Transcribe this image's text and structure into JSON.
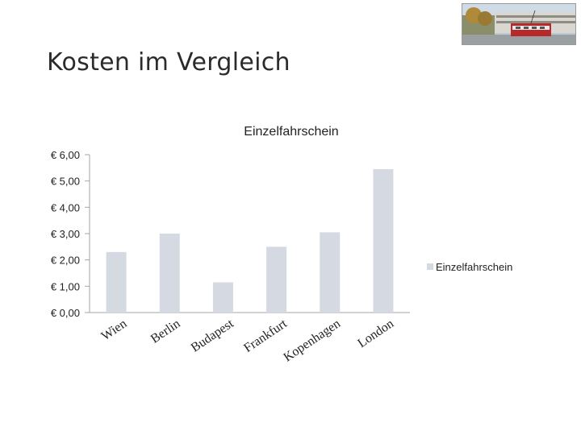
{
  "slide": {
    "title": "Kosten im Vergleich"
  },
  "colors": {
    "bar": "#d5d9e2",
    "axis": "#a6a6a6",
    "text": "#222222"
  },
  "photo": {
    "icon": "tram-photo-icon"
  },
  "chart_data": {
    "type": "bar",
    "title": "Einzelfahrschein",
    "xlabel": "",
    "ylabel": "",
    "categories": [
      "Wien",
      "Berlin",
      "Budapest",
      "Frankfurt",
      "Kopenhagen",
      "London"
    ],
    "series": [
      {
        "name": "Einzelfahrschein",
        "values": [
          2.3,
          3.0,
          1.15,
          2.5,
          3.05,
          5.45
        ]
      }
    ],
    "ylim": [
      0,
      6
    ],
    "yticks": [
      "€ 0,00",
      "€ 1,00",
      "€ 2,00",
      "€ 3,00",
      "€ 4,00",
      "€ 5,00",
      "€ 6,00"
    ],
    "grid": false,
    "legend": "right"
  }
}
